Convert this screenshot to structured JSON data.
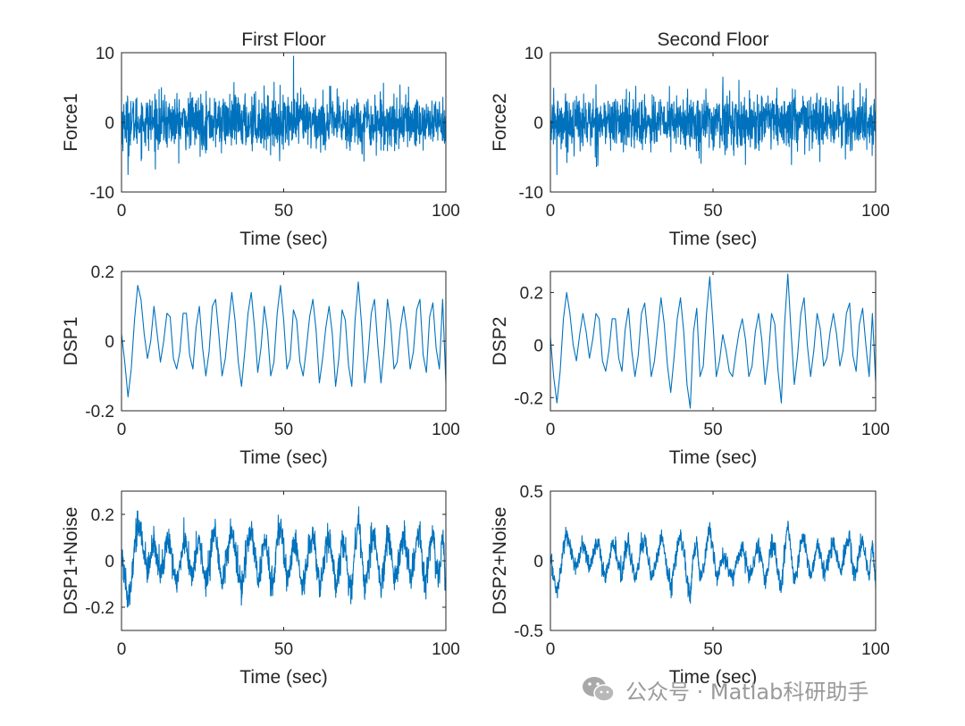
{
  "chart_data": [
    {
      "type": "line",
      "title": "First Floor",
      "xlabel": "Time (sec)",
      "ylabel": "Force1",
      "xlim": [
        0,
        100
      ],
      "ylim": [
        -10,
        10
      ],
      "xticks": [
        0,
        50,
        100
      ],
      "yticks": [
        -10,
        0,
        10
      ],
      "series": [
        {
          "name": "Force1",
          "color": "#0072BD",
          "signal": "white_noise",
          "amplitude": 3.2,
          "peak_max": 9.5,
          "peak_min": -7.5,
          "samples": 1400
        }
      ]
    },
    {
      "type": "line",
      "title": "Second Floor",
      "xlabel": "Time (sec)",
      "ylabel": "Force2",
      "xlim": [
        0,
        100
      ],
      "ylim": [
        -10,
        10
      ],
      "xticks": [
        0,
        50,
        100
      ],
      "yticks": [
        -10,
        0,
        10
      ],
      "series": [
        {
          "name": "Force2",
          "color": "#0072BD",
          "signal": "white_noise",
          "amplitude": 3.2,
          "peak_max": 6.5,
          "peak_min": -7.5,
          "samples": 1400
        }
      ]
    },
    {
      "type": "line",
      "title": "",
      "xlabel": "Time (sec)",
      "ylabel": "DSP1",
      "xlim": [
        0,
        100
      ],
      "ylim": [
        -0.2,
        0.2
      ],
      "xticks": [
        0,
        50,
        100
      ],
      "yticks": [
        -0.2,
        0,
        0.2
      ],
      "series": [
        {
          "name": "DSP1",
          "color": "#0072BD",
          "x": [
            0,
            1,
            2,
            3,
            4,
            5,
            6,
            7,
            8,
            9,
            10,
            11,
            12,
            13,
            14,
            15,
            16,
            17,
            18,
            19,
            20,
            21,
            22,
            23,
            24,
            25,
            26,
            27,
            28,
            29,
            30,
            31,
            32,
            33,
            34,
            35,
            36,
            37,
            38,
            39,
            40,
            41,
            42,
            43,
            44,
            45,
            46,
            47,
            48,
            49,
            50,
            51,
            52,
            53,
            54,
            55,
            56,
            57,
            58,
            59,
            60,
            61,
            62,
            63,
            64,
            65,
            66,
            67,
            68,
            69,
            70,
            71,
            72,
            73,
            74,
            75,
            76,
            77,
            78,
            79,
            80,
            81,
            82,
            83,
            84,
            85,
            86,
            87,
            88,
            89,
            90,
            91,
            92,
            93,
            94,
            95,
            96,
            97,
            98,
            99,
            100
          ],
          "y": [
            0.02,
            -0.06,
            -0.16,
            -0.08,
            0.06,
            0.16,
            0.12,
            0.02,
            -0.05,
            0.0,
            0.1,
            0.02,
            -0.06,
            0.0,
            0.08,
            0.07,
            -0.05,
            -0.08,
            -0.03,
            0.08,
            0.08,
            -0.04,
            -0.08,
            0.04,
            0.1,
            -0.02,
            -0.1,
            -0.03,
            0.1,
            0.12,
            0.02,
            -0.1,
            -0.05,
            0.05,
            0.14,
            0.06,
            -0.06,
            -0.13,
            -0.03,
            0.08,
            0.14,
            0.04,
            -0.09,
            -0.02,
            0.1,
            0.03,
            -0.1,
            -0.06,
            0.08,
            0.16,
            0.06,
            -0.08,
            -0.05,
            0.09,
            0.06,
            -0.06,
            -0.1,
            -0.02,
            0.07,
            0.12,
            0.03,
            -0.12,
            -0.05,
            0.04,
            0.1,
            0.02,
            -0.13,
            -0.05,
            0.09,
            0.06,
            -0.07,
            -0.13,
            0.06,
            0.17,
            0.05,
            -0.12,
            -0.04,
            0.08,
            0.12,
            -0.01,
            -0.12,
            -0.02,
            0.12,
            0.05,
            -0.08,
            -0.06,
            0.04,
            0.1,
            0.03,
            -0.08,
            -0.03,
            0.09,
            0.12,
            -0.04,
            -0.09,
            0.07,
            0.11,
            -0.02,
            -0.08,
            0.12,
            -0.12
          ]
        }
      ]
    },
    {
      "type": "line",
      "title": "",
      "xlabel": "Time (sec)",
      "ylabel": "DSP2",
      "xlim": [
        0,
        100
      ],
      "ylim": [
        -0.25,
        0.28
      ],
      "xticks": [
        0,
        50,
        100
      ],
      "yticks": [
        -0.2,
        0,
        0.2
      ],
      "series": [
        {
          "name": "DSP2",
          "color": "#0072BD",
          "x": [
            0,
            1,
            2,
            3,
            4,
            5,
            6,
            7,
            8,
            9,
            10,
            11,
            12,
            13,
            14,
            15,
            16,
            17,
            18,
            19,
            20,
            21,
            22,
            23,
            24,
            25,
            26,
            27,
            28,
            29,
            30,
            31,
            32,
            33,
            34,
            35,
            36,
            37,
            38,
            39,
            40,
            41,
            42,
            43,
            44,
            45,
            46,
            47,
            48,
            49,
            50,
            51,
            52,
            53,
            54,
            55,
            56,
            57,
            58,
            59,
            60,
            61,
            62,
            63,
            64,
            65,
            66,
            67,
            68,
            69,
            70,
            71,
            72,
            73,
            74,
            75,
            76,
            77,
            78,
            79,
            80,
            81,
            82,
            83,
            84,
            85,
            86,
            87,
            88,
            89,
            90,
            91,
            92,
            93,
            94,
            95,
            96,
            97,
            98,
            99,
            100
          ],
          "y": [
            0.03,
            -0.12,
            -0.22,
            -0.1,
            0.1,
            0.2,
            0.12,
            0.0,
            -0.06,
            0.04,
            0.12,
            0.05,
            -0.05,
            0.02,
            0.12,
            0.1,
            -0.06,
            -0.1,
            -0.02,
            0.1,
            0.1,
            -0.05,
            -0.1,
            0.06,
            0.14,
            -0.02,
            -0.12,
            -0.04,
            0.12,
            0.16,
            0.03,
            -0.12,
            -0.06,
            0.06,
            0.18,
            0.08,
            -0.08,
            -0.18,
            -0.05,
            0.1,
            0.18,
            0.05,
            -0.15,
            -0.24,
            0.05,
            0.14,
            -0.12,
            -0.08,
            0.12,
            0.26,
            0.08,
            -0.12,
            -0.06,
            0.04,
            -0.02,
            -0.1,
            -0.12,
            -0.03,
            0.05,
            0.1,
            0.02,
            -0.12,
            -0.08,
            0.05,
            0.12,
            0.02,
            -0.15,
            -0.05,
            0.12,
            0.08,
            -0.1,
            -0.22,
            0.08,
            0.27,
            0.05,
            -0.15,
            -0.04,
            0.12,
            0.18,
            0.0,
            -0.12,
            -0.02,
            0.12,
            0.06,
            -0.08,
            -0.05,
            0.05,
            0.12,
            0.04,
            -0.08,
            -0.02,
            0.12,
            0.16,
            -0.04,
            -0.1,
            0.08,
            0.14,
            0.0,
            -0.12,
            0.12,
            -0.14
          ]
        }
      ]
    },
    {
      "type": "line",
      "title": "",
      "xlabel": "Time (sec)",
      "ylabel": "DSP1+Noise",
      "xlim": [
        0,
        100
      ],
      "ylim": [
        -0.3,
        0.3
      ],
      "xticks": [
        0,
        50,
        100
      ],
      "yticks": [
        -0.2,
        0,
        0.2
      ],
      "series": [
        {
          "name": "DSP1+Noise",
          "color": "#0072BD",
          "base": "DSP1",
          "noise_amplitude": 0.06,
          "samples": 1400
        }
      ]
    },
    {
      "type": "line",
      "title": "",
      "xlabel": "Time (sec)",
      "ylabel": "DSP2+Noise",
      "xlim": [
        0,
        100
      ],
      "ylim": [
        -0.5,
        0.5
      ],
      "xticks": [
        0,
        50,
        100
      ],
      "yticks": [
        -0.5,
        0,
        0.5
      ],
      "series": [
        {
          "name": "DSP2+Noise",
          "color": "#0072BD",
          "base": "DSP2",
          "noise_amplitude": 0.06,
          "samples": 1400
        }
      ]
    }
  ],
  "watermark": {
    "text": "公众号 · Matlab科研助手",
    "icon": "wechat-icon",
    "color": "#9a9a9a"
  }
}
